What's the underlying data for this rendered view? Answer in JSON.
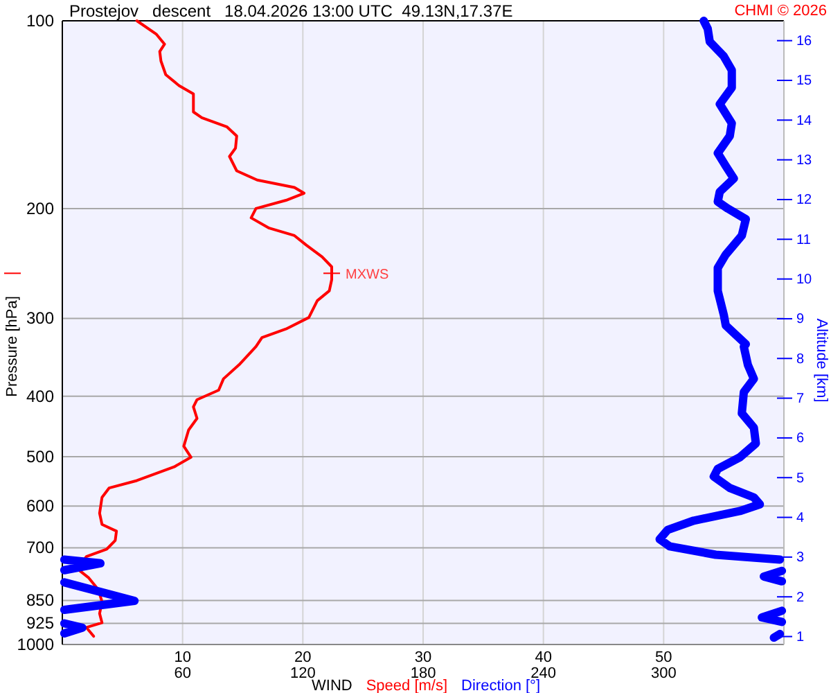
{
  "chart_data": {
    "type": "line",
    "orientation": "horizontal",
    "title": "Prostejov   descent   18.04.2026 13:00 UTC  49.13N,17.37E",
    "xlabel": "WIND",
    "ylabel": "Pressure [hPa]",
    "y2label": "Altitude [km]",
    "annotations": [
      "CHMI © 2026",
      {
        "text": "MXWS",
        "x": 22.4,
        "y": 254
      }
    ],
    "xlim": [
      0,
      60
    ],
    "xticks": [
      10,
      20,
      30,
      40,
      50
    ],
    "x2lim": [
      0,
      360
    ],
    "x2ticks": [
      60,
      120,
      180,
      240,
      300
    ],
    "ylim": [
      1000,
      100
    ],
    "yticks": [
      100,
      200,
      300,
      400,
      500,
      600,
      700,
      850,
      925,
      1000
    ],
    "y2lim": [
      0.8,
      16.5
    ],
    "y2ticks": [
      1,
      2,
      3,
      4,
      5,
      6,
      7,
      8,
      9,
      10,
      11,
      12,
      13,
      14,
      15,
      16
    ],
    "log": "y",
    "grid": true,
    "legend": "bottom",
    "series": [
      {
        "name": "Speed [m/s]",
        "color": "#ff0000",
        "values": [
          6.2,
          7.8,
          8.5,
          8.1,
          8.2,
          8.6,
          9.7,
          10.9,
          10.9,
          11.6,
          13.7,
          14.5,
          14.4,
          13.9,
          14.5,
          16.2,
          19.3,
          20.1,
          18.6,
          16.1,
          15.7,
          17.2,
          19.3,
          20.3,
          21.6,
          22.4,
          22.4,
          22.2,
          21.2,
          20.5,
          18.6,
          16.6,
          16.1,
          14.7,
          13.4,
          13.0,
          11.2,
          10.9,
          11.2,
          10.5,
          10.1,
          10.7,
          9.3,
          6.2,
          3.9,
          3.3,
          3.1,
          3.3,
          4.5,
          4.4,
          3.7,
          2.0,
          1.2,
          2.2,
          3.0,
          3.3,
          3.1,
          3.3,
          2.0,
          2.6
        ],
        "x": [
          100,
          105,
          109,
          112,
          116,
          122,
          127,
          131,
          140,
          143,
          148,
          153,
          160,
          165,
          174,
          180,
          185,
          189,
          194,
          200,
          207,
          215,
          221,
          229,
          239,
          248,
          260,
          271,
          281,
          299,
          312,
          322,
          333,
          356,
          375,
          391,
          405,
          416,
          434,
          453,
          481,
          501,
          519,
          546,
          561,
          581,
          616,
          642,
          658,
          681,
          703,
          723,
          755,
          782,
          817,
          854,
          892,
          923,
          939,
          970
        ]
      },
      {
        "name": "Direction [°]",
        "color": "#0000ff",
        "axis": "x2",
        "values": [
          320,
          322,
          323,
          330,
          334,
          334,
          328,
          334,
          333,
          327,
          331,
          335,
          328,
          327,
          332,
          341,
          339,
          331,
          327,
          327,
          330,
          331,
          341,
          340,
          342,
          345,
          340,
          339,
          345,
          346,
          338,
          327,
          325,
          333,
          345,
          348,
          338,
          315,
          302,
          298,
          303,
          326,
          358,
          null,
          1,
          19,
          1,
          null,
          359,
          350,
          359,
          null,
          1,
          36,
          1,
          null,
          359,
          349,
          359,
          null,
          1,
          10,
          1,
          null,
          358,
          355
        ],
        "x": [
          100,
          103,
          108,
          114,
          120,
          128,
          136,
          146,
          153,
          163,
          171,
          179,
          188,
          195,
          200,
          208,
          221,
          237,
          249,
          271,
          296,
          308,
          330,
          333,
          356,
          375,
          394,
          426,
          449,
          476,
          501,
          523,
          538,
          561,
          581,
          596,
          611,
          633,
          655,
          678,
          696,
          718,
          731,
          null,
          731,
          741,
          760,
          null,
          762,
          778,
          792,
          null,
          795,
          851,
          880,
          null,
          883,
          905,
          920,
          null,
          925,
          940,
          960,
          null,
          962,
          975
        ]
      }
    ]
  }
}
